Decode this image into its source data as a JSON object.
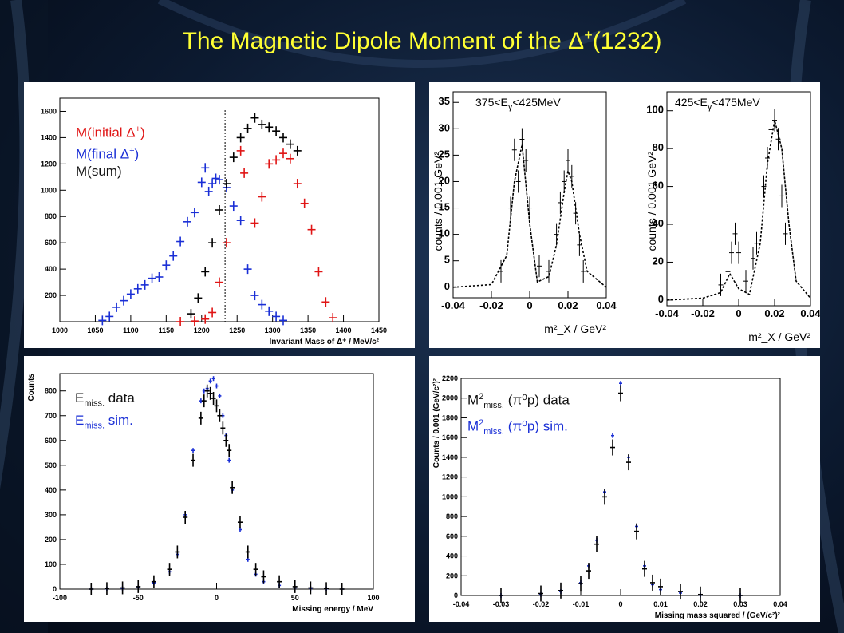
{
  "title": {
    "text": "The Magnetic Dipole Moment of the",
    "particle": "Δ",
    "charge": "+",
    "mass": "(1232)"
  },
  "colors": {
    "title": "#ffff33",
    "black": "#000000",
    "blue": "#1a2fd6",
    "red": "#e01515"
  },
  "chart_data": [
    {
      "type": "scatter",
      "xlabel": "Invariant Mass of Δ⁺ / MeV/c²",
      "ylabel": "",
      "xlim": [
        1000,
        1450
      ],
      "ylim": [
        0,
        1700
      ],
      "xticks": [
        1000,
        1050,
        1100,
        1150,
        1200,
        1250,
        1300,
        1350,
        1400,
        1450
      ],
      "yticks": [
        200,
        400,
        600,
        800,
        1000,
        1200,
        1400,
        1600
      ],
      "vline": 1233,
      "legend": [
        "M(initial Δ⁺)",
        "M(final Δ⁺)",
        "M(sum)"
      ],
      "series": [
        {
          "name": "M(initial Δ⁺)",
          "color": "#e01515",
          "x": [
            1170,
            1190,
            1205,
            1215,
            1225,
            1235,
            1255,
            1260,
            1275,
            1285,
            1295,
            1305,
            1315,
            1325,
            1335,
            1345,
            1355,
            1365,
            1375,
            1385
          ],
          "y": [
            0,
            5,
            20,
            70,
            300,
            600,
            1300,
            1130,
            750,
            950,
            1200,
            1230,
            1280,
            1240,
            1050,
            900,
            700,
            380,
            150,
            30
          ]
        },
        {
          "name": "M(final Δ⁺)",
          "color": "#1a2fd6",
          "x": [
            1060,
            1070,
            1080,
            1090,
            1100,
            1110,
            1120,
            1130,
            1140,
            1150,
            1160,
            1170,
            1180,
            1190,
            1200,
            1205,
            1210,
            1215,
            1220,
            1225,
            1235,
            1245,
            1255,
            1265,
            1275,
            1285,
            1295,
            1305,
            1315
          ],
          "y": [
            10,
            40,
            110,
            160,
            210,
            250,
            280,
            330,
            340,
            430,
            500,
            610,
            760,
            830,
            1060,
            1170,
            990,
            1050,
            1090,
            1080,
            1020,
            880,
            770,
            400,
            200,
            130,
            80,
            40,
            10
          ]
        },
        {
          "name": "M(sum)",
          "color": "#000000",
          "x": [
            1185,
            1195,
            1205,
            1215,
            1225,
            1235,
            1245,
            1255,
            1265,
            1275,
            1285,
            1295,
            1305,
            1315,
            1325,
            1335
          ],
          "y": [
            60,
            180,
            380,
            600,
            850,
            1050,
            1250,
            1400,
            1470,
            1550,
            1500,
            1480,
            1450,
            1400,
            1350,
            1300
          ]
        }
      ]
    },
    {
      "type": "line",
      "xlabel": "m²_X / GeV²",
      "ylabel": "counts / 0.001 GeV²",
      "subpanels": [
        {
          "label": "375<E_γ<425MeV",
          "xlim": [
            -0.04,
            0.04
          ],
          "ylim": [
            -2,
            37
          ],
          "xticks": [
            -0.04,
            -0.02,
            0,
            0.02,
            0.04
          ],
          "yticks": [
            0,
            5,
            10,
            15,
            20,
            25,
            30,
            35
          ],
          "data_x": [
            -0.015,
            -0.01,
            -0.008,
            -0.006,
            -0.004,
            -0.002,
            0,
            0.005,
            0.01,
            0.014,
            0.016,
            0.018,
            0.02,
            0.022,
            0.024,
            0.026,
            0.028
          ],
          "data_y": [
            3,
            15,
            26,
            20,
            28,
            24,
            15,
            4,
            3,
            10,
            16,
            20,
            24,
            21,
            14,
            8,
            3
          ],
          "fit_x": [
            -0.04,
            -0.02,
            -0.012,
            -0.008,
            -0.004,
            0,
            0.004,
            0.01,
            0.014,
            0.018,
            0.02,
            0.022,
            0.026,
            0.03,
            0.04
          ],
          "fit_y": [
            0,
            0.5,
            6,
            20,
            27,
            12,
            1,
            2,
            8,
            18,
            22,
            20,
            10,
            3,
            0
          ]
        },
        {
          "label": "425<E_γ<475MeV",
          "xlim": [
            -0.04,
            0.04
          ],
          "ylim": [
            -3,
            110
          ],
          "xticks": [
            -0.04,
            -0.02,
            0,
            0.02,
            0.04
          ],
          "yticks": [
            0,
            20,
            40,
            60,
            80,
            100
          ],
          "data_x": [
            -0.01,
            -0.006,
            -0.004,
            -0.002,
            0,
            0.004,
            0.008,
            0.01,
            0.014,
            0.016,
            0.018,
            0.02,
            0.022,
            0.024,
            0.026
          ],
          "data_y": [
            8,
            15,
            25,
            35,
            25,
            10,
            22,
            30,
            60,
            75,
            90,
            95,
            85,
            55,
            35
          ],
          "fit_x": [
            -0.04,
            -0.02,
            -0.01,
            -0.005,
            0,
            0.006,
            0.012,
            0.016,
            0.02,
            0.024,
            0.028,
            0.032,
            0.04
          ],
          "fit_y": [
            0,
            1,
            4,
            14,
            6,
            3,
            30,
            72,
            95,
            80,
            40,
            10,
            1
          ]
        }
      ]
    },
    {
      "type": "scatter",
      "xlabel": "Missing energy / MeV",
      "ylabel": "Counts",
      "xlim": [
        -100,
        100
      ],
      "ylim": [
        0,
        870
      ],
      "xticks": [
        -100,
        -50,
        0,
        50,
        100
      ],
      "yticks": [
        0,
        100,
        200,
        300,
        400,
        500,
        600,
        700,
        800
      ],
      "legend": [
        "E_miss. data",
        "E_miss. sim."
      ],
      "series": [
        {
          "name": "E_miss. data",
          "color": "#000000",
          "x": [
            -80,
            -70,
            -60,
            -50,
            -40,
            -30,
            -25,
            -20,
            -15,
            -10,
            -8,
            -6,
            -4,
            -2,
            0,
            2,
            4,
            6,
            8,
            10,
            15,
            20,
            25,
            30,
            40,
            50,
            60,
            70,
            80
          ],
          "y": [
            0,
            2,
            5,
            10,
            30,
            80,
            150,
            290,
            520,
            690,
            760,
            800,
            790,
            770,
            740,
            700,
            650,
            600,
            560,
            410,
            270,
            150,
            80,
            50,
            30,
            10,
            5,
            2,
            0
          ]
        },
        {
          "name": "E_miss. sim.",
          "color": "#1a2fd6",
          "x": [
            -80,
            -70,
            -60,
            -50,
            -40,
            -30,
            -25,
            -20,
            -15,
            -10,
            -8,
            -6,
            -4,
            -2,
            0,
            2,
            4,
            6,
            8,
            10,
            15,
            20,
            25,
            30,
            40,
            50,
            60,
            70,
            80
          ],
          "y": [
            0,
            1,
            3,
            8,
            25,
            70,
            140,
            300,
            560,
            760,
            800,
            810,
            840,
            850,
            820,
            780,
            700,
            620,
            520,
            400,
            240,
            120,
            60,
            30,
            15,
            5,
            3,
            1,
            0
          ]
        }
      ]
    },
    {
      "type": "scatter",
      "xlabel": "Missing mass squared / (GeV/c²)²",
      "ylabel": "Counts / 0.001 (GeV/c²)²",
      "xlim": [
        -0.04,
        0.04
      ],
      "ylim": [
        0,
        2200
      ],
      "xticks": [
        -0.04,
        -0.03,
        -0.02,
        -0.01,
        0,
        0.01,
        0.02,
        0.03,
        0.04
      ],
      "yticks": [
        0,
        200,
        400,
        600,
        800,
        1000,
        1200,
        1400,
        1600,
        1800,
        2000,
        2200
      ],
      "legend": [
        "M²_miss.(π⁰p) data",
        "M²_miss.(π⁰p) sim."
      ],
      "series": [
        {
          "name": "M²_miss.(π⁰p) data",
          "color": "#000000",
          "x": [
            -0.03,
            -0.02,
            -0.015,
            -0.01,
            -0.008,
            -0.006,
            -0.004,
            -0.002,
            0,
            0.002,
            0.004,
            0.006,
            0.008,
            0.01,
            0.015,
            0.02,
            0.03
          ],
          "y": [
            0,
            20,
            50,
            120,
            250,
            520,
            1000,
            1500,
            2050,
            1350,
            650,
            270,
            130,
            90,
            40,
            10,
            0
          ]
        },
        {
          "name": "M²_miss.(π⁰p) sim.",
          "color": "#1a2fd6",
          "x": [
            -0.03,
            -0.02,
            -0.015,
            -0.01,
            -0.008,
            -0.006,
            -0.004,
            -0.002,
            0,
            0.002,
            0.004,
            0.006,
            0.008,
            0.01,
            0.015,
            0.02,
            0.03
          ],
          "y": [
            0,
            10,
            40,
            130,
            300,
            560,
            1050,
            1620,
            2150,
            1400,
            700,
            300,
            110,
            60,
            25,
            5,
            0
          ]
        }
      ]
    }
  ],
  "panel_texts": {
    "p1": {
      "leg1": "M(initial ",
      "leg2": "M(final ",
      "leg3": "M(sum)"
    },
    "p2": {
      "label_a": "375<E",
      "label_a_sub": "γ",
      "label_a_end": "<425MeV",
      "label_b": "425<E",
      "label_b_sub": "γ",
      "label_b_end": "<475MeV"
    },
    "p3": {
      "leg_data_main": "E",
      "leg_data_sub": "miss.",
      "leg_data_end": " data",
      "leg_sim_main": "E",
      "leg_sim_sub": "miss.",
      "leg_sim_end": " sim."
    },
    "p4": {
      "leg_data_main": "M",
      "leg_data_sup": "2",
      "leg_data_sub": "miss.",
      "leg_data_end": " (π⁰p) data",
      "leg_sim_main": "M",
      "leg_sim_sup": "2",
      "leg_sim_sub": "miss.",
      "leg_sim_end": " (π⁰p) sim."
    }
  }
}
